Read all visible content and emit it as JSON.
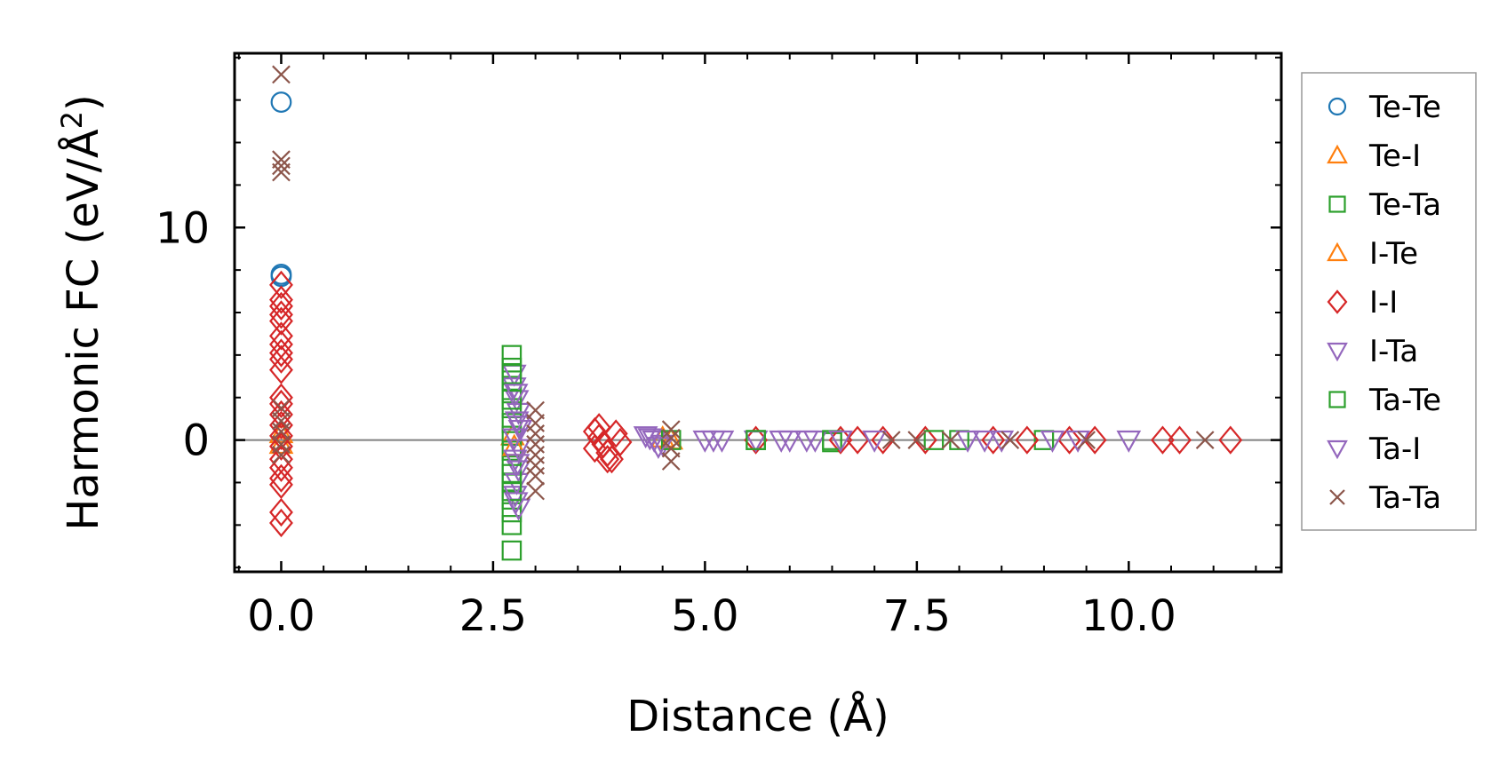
{
  "chart_data": {
    "type": "scatter",
    "title": "",
    "xlabel": "Distance (Å)",
    "ylabel_main": "Harmonic FC (eV/Å",
    "ylabel_sup": "2",
    "ylabel_end": ")",
    "xlim": [
      -0.55,
      11.8
    ],
    "ylim": [
      -6.2,
      18.2
    ],
    "xticks": [
      0,
      2.5,
      5,
      7.5,
      10
    ],
    "xtick_labels": [
      "0.0",
      "2.5",
      "5.0",
      "7.5",
      "10.0"
    ],
    "yticks": [
      0,
      10
    ],
    "ytick_labels": [
      "0",
      "10"
    ],
    "zero_line": true,
    "legend_position": "right-outside",
    "series": [
      {
        "name": "Te-Te",
        "marker": "circle",
        "color": "#1f77b4",
        "points": [
          [
            0,
            15.9
          ],
          [
            0,
            7.8
          ],
          [
            0,
            7.7
          ]
        ]
      },
      {
        "name": "Te-I",
        "marker": "triangle-up",
        "color": "#ff7f0e",
        "points": [
          [
            0,
            0.3
          ],
          [
            2.73,
            0.2
          ],
          [
            4.5,
            0.1
          ]
        ]
      },
      {
        "name": "Te-Ta",
        "marker": "square",
        "color": "#2ca02c",
        "points": [
          [
            2.72,
            4.0
          ],
          [
            2.72,
            3.4
          ],
          [
            2.72,
            2.8
          ],
          [
            2.72,
            2.2
          ],
          [
            2.72,
            1.5
          ],
          [
            2.72,
            0.8
          ],
          [
            2.72,
            0.2
          ],
          [
            2.72,
            -0.5
          ],
          [
            2.72,
            -1.2
          ],
          [
            2.72,
            -2.0
          ],
          [
            2.72,
            -2.8
          ],
          [
            2.72,
            -3.4
          ],
          [
            2.72,
            -4.0
          ],
          [
            2.72,
            -5.2
          ],
          [
            5.6,
            0.0
          ],
          [
            6.5,
            -0.1
          ],
          [
            8.0,
            0.0
          ],
          [
            9.0,
            0.0
          ]
        ]
      },
      {
        "name": "I-Te",
        "marker": "triangle-up",
        "color": "#ff7f0e",
        "points": [
          [
            0,
            -0.2
          ],
          [
            2.75,
            -0.3
          ],
          [
            4.6,
            0.0
          ]
        ]
      },
      {
        "name": "I-I",
        "marker": "diamond",
        "color": "#d62728",
        "points": [
          [
            0,
            7.3
          ],
          [
            0,
            6.6
          ],
          [
            0,
            6.3
          ],
          [
            0,
            5.9
          ],
          [
            0,
            5.6
          ],
          [
            0,
            4.9
          ],
          [
            0,
            4.5
          ],
          [
            0,
            4.1
          ],
          [
            0,
            3.8
          ],
          [
            0,
            3.3
          ],
          [
            0,
            2.0
          ],
          [
            0,
            1.7
          ],
          [
            0,
            1.2
          ],
          [
            0,
            0.7
          ],
          [
            0,
            0.2
          ],
          [
            0,
            -0.3
          ],
          [
            0,
            -0.9
          ],
          [
            0,
            -1.3
          ],
          [
            0,
            -1.8
          ],
          [
            0,
            -2.1
          ],
          [
            0,
            -3.4
          ],
          [
            0,
            -3.9
          ],
          [
            3.7,
            0.4
          ],
          [
            3.75,
            0.1
          ],
          [
            3.8,
            -0.2
          ],
          [
            3.85,
            -0.6
          ],
          [
            3.9,
            -0.9
          ],
          [
            3.7,
            -0.4
          ],
          [
            3.95,
            0.3
          ],
          [
            4.0,
            -0.1
          ],
          [
            3.75,
            0.6
          ],
          [
            3.85,
            -0.9
          ],
          [
            5.6,
            0.0
          ],
          [
            6.6,
            0.0
          ],
          [
            6.8,
            0.0
          ],
          [
            7.1,
            0.0
          ],
          [
            7.6,
            0.0
          ],
          [
            8.4,
            0.0
          ],
          [
            8.8,
            0.0
          ],
          [
            9.3,
            0.0
          ],
          [
            9.6,
            0.0
          ],
          [
            10.4,
            0.0
          ],
          [
            10.6,
            0.0
          ],
          [
            11.2,
            0.0
          ]
        ]
      },
      {
        "name": "I-Ta",
        "marker": "triangle-down",
        "color": "#9467bd",
        "points": [
          [
            2.75,
            3.1
          ],
          [
            2.75,
            2.5
          ],
          [
            2.78,
            1.9
          ],
          [
            2.8,
            1.3
          ],
          [
            2.78,
            0.9
          ],
          [
            2.82,
            0.5
          ],
          [
            2.75,
            0.1
          ],
          [
            2.8,
            -0.4
          ],
          [
            2.76,
            -0.9
          ],
          [
            2.8,
            -1.4
          ],
          [
            2.78,
            -2.0
          ],
          [
            2.76,
            -2.6
          ],
          [
            2.8,
            -3.2
          ],
          [
            4.3,
            0.2
          ],
          [
            4.4,
            0.0
          ],
          [
            4.5,
            -0.2
          ],
          [
            5.0,
            0.0
          ],
          [
            5.2,
            0.0
          ],
          [
            5.6,
            0.0
          ],
          [
            6.0,
            0.0
          ],
          [
            6.3,
            0.0
          ],
          [
            7.0,
            0.0
          ],
          [
            8.1,
            0.0
          ],
          [
            8.5,
            0.0
          ],
          [
            9.4,
            0.0
          ],
          [
            10.0,
            0.0
          ]
        ]
      },
      {
        "name": "Ta-Te",
        "marker": "square",
        "color": "#2ca02c",
        "points": [
          [
            2.72,
            3.1
          ],
          [
            2.72,
            1.9
          ],
          [
            2.72,
            -1.6
          ],
          [
            2.72,
            -2.4
          ],
          [
            4.6,
            0.0
          ],
          [
            5.6,
            0.0
          ],
          [
            6.5,
            0.0
          ],
          [
            7.7,
            0.0
          ]
        ]
      },
      {
        "name": "Ta-I",
        "marker": "triangle-down",
        "color": "#9467bd",
        "points": [
          [
            2.77,
            2.2
          ],
          [
            2.81,
            0.7
          ],
          [
            2.79,
            -1.1
          ],
          [
            2.77,
            -2.9
          ],
          [
            4.35,
            0.1
          ],
          [
            4.45,
            -0.3
          ],
          [
            5.1,
            0.0
          ],
          [
            5.9,
            0.0
          ],
          [
            6.2,
            0.0
          ],
          [
            6.6,
            0.0
          ],
          [
            8.3,
            0.0
          ],
          [
            9.1,
            0.0
          ]
        ]
      },
      {
        "name": "Ta-Ta",
        "marker": "x",
        "color": "#8c564b",
        "points": [
          [
            0,
            17.2
          ],
          [
            0,
            13.2
          ],
          [
            0,
            12.9
          ],
          [
            0,
            12.6
          ],
          [
            0,
            1.5
          ],
          [
            0,
            0.9
          ],
          [
            0,
            0.4
          ],
          [
            0,
            -0.2
          ],
          [
            0,
            -0.7
          ],
          [
            3.0,
            1.4
          ],
          [
            3.0,
            0.8
          ],
          [
            3.0,
            0.3
          ],
          [
            3.0,
            -0.2
          ],
          [
            3.0,
            -0.7
          ],
          [
            3.0,
            -1.2
          ],
          [
            3.0,
            -1.7
          ],
          [
            3.0,
            -2.4
          ],
          [
            4.6,
            0.5
          ],
          [
            4.6,
            0.1
          ],
          [
            4.6,
            -0.4
          ],
          [
            4.6,
            -1.0
          ],
          [
            7.2,
            0.0
          ],
          [
            7.5,
            0.0
          ],
          [
            7.9,
            0.0
          ],
          [
            8.6,
            0.0
          ],
          [
            9.5,
            0.0
          ],
          [
            10.9,
            0.0
          ]
        ]
      }
    ]
  }
}
